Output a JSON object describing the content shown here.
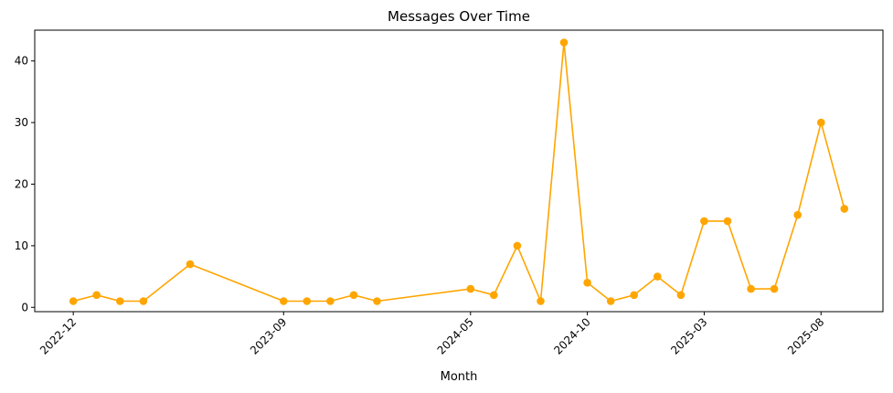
{
  "chart_data": {
    "type": "line",
    "title": "Messages Over Time",
    "xlabel": "Month",
    "ylabel": "",
    "x": [
      "2022-12",
      "2023-01",
      "2023-02",
      "2023-03",
      "2023-05",
      "2023-09",
      "2023-10",
      "2023-11",
      "2023-12",
      "2024-01",
      "2024-05",
      "2024-06",
      "2024-07",
      "2024-08",
      "2024-09",
      "2024-10",
      "2024-11",
      "2024-12",
      "2025-01",
      "2025-02",
      "2025-03",
      "2025-04",
      "2025-05",
      "2025-06",
      "2025-07",
      "2025-08",
      "2025-09"
    ],
    "series": [
      {
        "values": [
          1,
          2,
          1,
          1,
          7,
          1,
          1,
          1,
          2,
          1,
          3,
          2,
          10,
          1,
          43,
          4,
          1,
          2,
          5,
          2,
          14,
          14,
          3,
          3,
          15,
          30,
          16
        ]
      }
    ],
    "x_ticks": [
      "2022-12",
      "2023-09",
      "2024-05",
      "2024-10",
      "2025-03",
      "2025-08"
    ],
    "y_ticks": [
      0,
      10,
      20,
      30,
      40
    ],
    "ylim": [
      -0.7,
      45
    ],
    "grid": false,
    "legend": "none",
    "colors": {
      "line": "#FFA500",
      "marker": "#FFA500",
      "axis": "#000000"
    }
  }
}
